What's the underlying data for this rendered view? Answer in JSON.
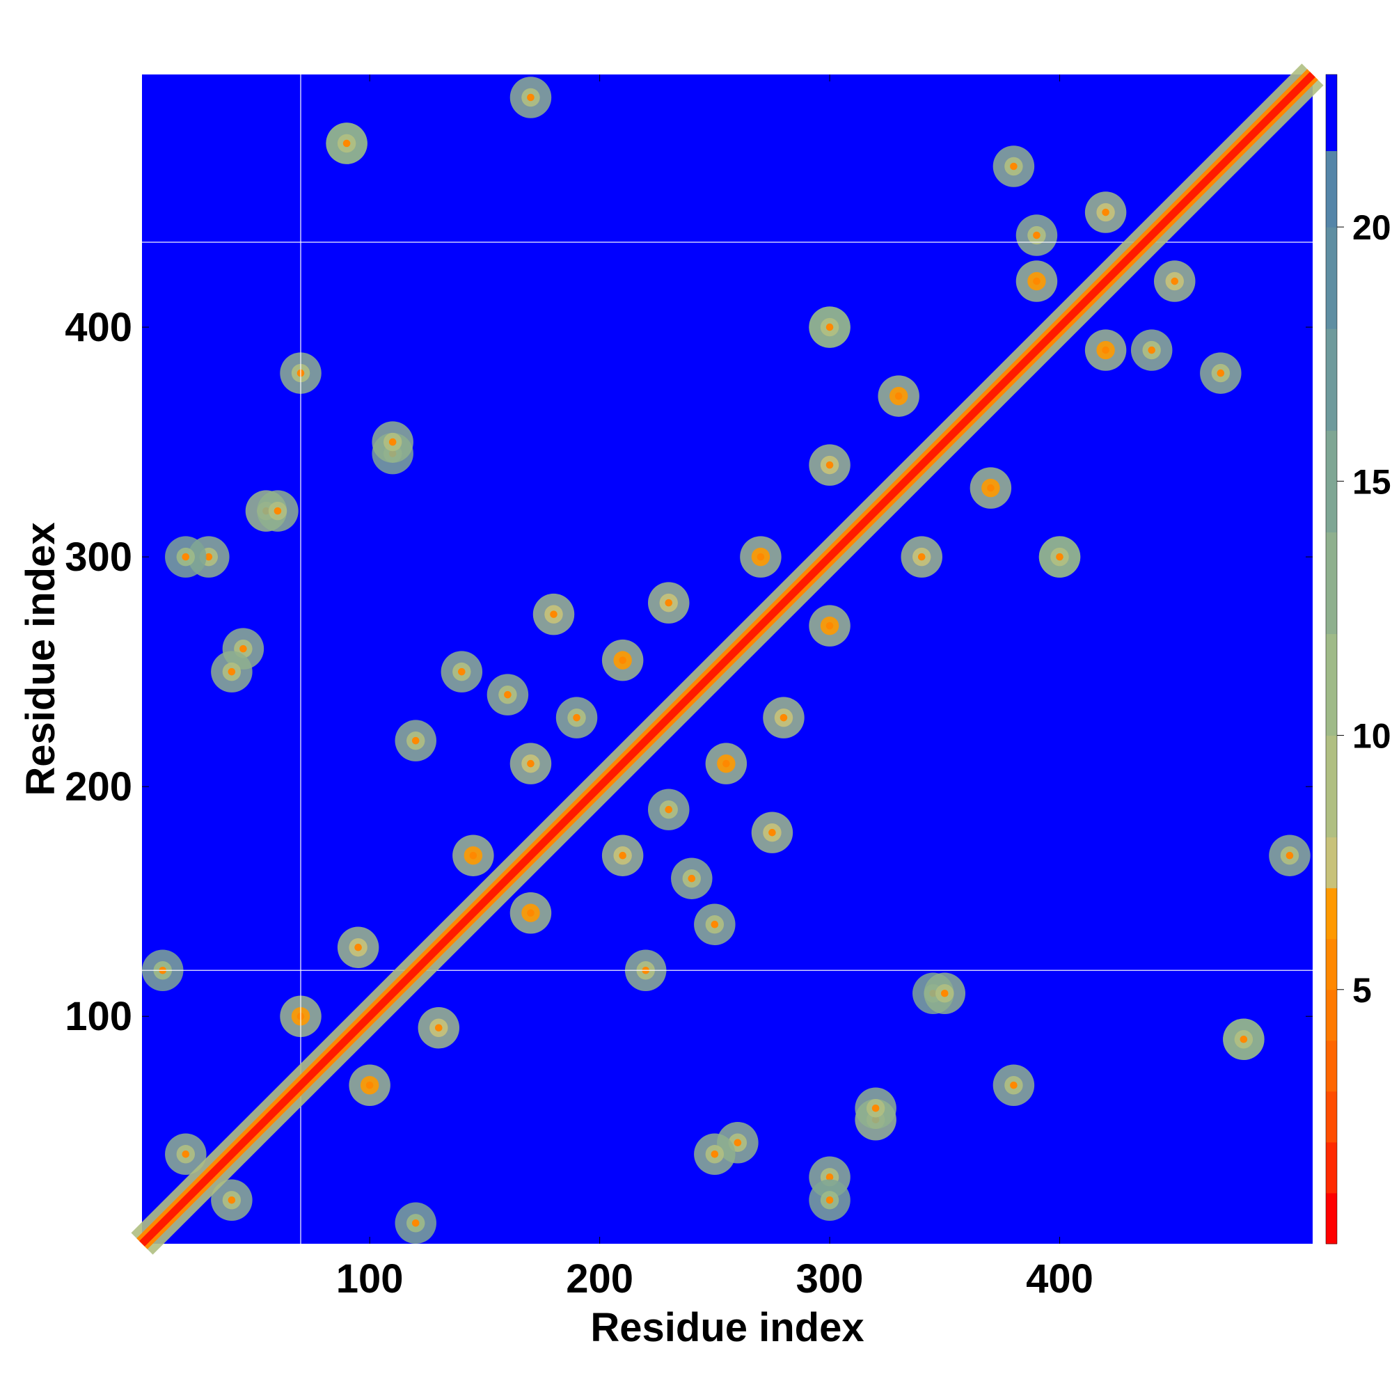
{
  "chart_data": {
    "type": "heatmap",
    "title": "",
    "xlabel": "Residue index",
    "ylabel": "Residue index",
    "xlim": [
      1,
      510
    ],
    "ylim": [
      1,
      510
    ],
    "x_ticks": [
      100,
      200,
      300,
      400
    ],
    "y_ticks": [
      100,
      200,
      300,
      400
    ],
    "colorbar": {
      "ticks": [
        5,
        10,
        15,
        20
      ],
      "range": [
        0,
        23
      ],
      "cutoff_color": "#0000ff",
      "levels": [
        {
          "from": 0,
          "to": 1,
          "color": "#ff0000"
        },
        {
          "from": 1,
          "to": 2,
          "color": "#ff2a00"
        },
        {
          "from": 2,
          "to": 3,
          "color": "#ff4d00"
        },
        {
          "from": 3,
          "to": 4,
          "color": "#ff6600"
        },
        {
          "from": 4,
          "to": 5,
          "color": "#ff7a00"
        },
        {
          "from": 5,
          "to": 6,
          "color": "#ff8800"
        },
        {
          "from": 6,
          "to": 7,
          "color": "#ff9900"
        },
        {
          "from": 7,
          "to": 8,
          "color": "#c8c27a"
        },
        {
          "from": 8,
          "to": 10,
          "color": "#b0bf82"
        },
        {
          "from": 10,
          "to": 12,
          "color": "#9fba88"
        },
        {
          "from": 12,
          "to": 14,
          "color": "#8fb08e"
        },
        {
          "from": 14,
          "to": 16,
          "color": "#7fa694"
        },
        {
          "from": 16,
          "to": 18,
          "color": "#6f9a9c"
        },
        {
          "from": 18,
          "to": 20,
          "color": "#5f8ea2"
        },
        {
          "from": 20,
          "to": 21.5,
          "color": "#5585a8"
        },
        {
          "from": 21.5,
          "to": 23,
          "color": "#0000ff"
        }
      ]
    },
    "background_color": "#0000ff",
    "diagonal_color": "#ff1a00",
    "gridlines": {
      "x": [
        70
      ],
      "y": [
        120,
        437
      ]
    },
    "contact_clusters": [
      {
        "i": 40,
        "j": 20,
        "value": 12
      },
      {
        "i": 100,
        "j": 70,
        "value": 10
      },
      {
        "i": 130,
        "j": 95,
        "value": 11
      },
      {
        "i": 120,
        "j": 10,
        "value": 14
      },
      {
        "i": 170,
        "j": 145,
        "value": 10
      },
      {
        "i": 210,
        "j": 170,
        "value": 11
      },
      {
        "i": 230,
        "j": 190,
        "value": 13
      },
      {
        "i": 255,
        "j": 210,
        "value": 10
      },
      {
        "i": 240,
        "j": 160,
        "value": 12
      },
      {
        "i": 280,
        "j": 230,
        "value": 11
      },
      {
        "i": 300,
        "j": 270,
        "value": 10
      },
      {
        "i": 300,
        "j": 30,
        "value": 13
      },
      {
        "i": 260,
        "j": 45,
        "value": 12
      },
      {
        "i": 320,
        "j": 55,
        "value": 11
      },
      {
        "i": 380,
        "j": 70,
        "value": 13
      },
      {
        "i": 480,
        "j": 90,
        "value": 12
      },
      {
        "i": 345,
        "j": 110,
        "value": 14
      },
      {
        "i": 220,
        "j": 120,
        "value": 12
      },
      {
        "i": 340,
        "j": 300,
        "value": 11
      },
      {
        "i": 370,
        "j": 330,
        "value": 10
      },
      {
        "i": 400,
        "j": 300,
        "value": 12
      },
      {
        "i": 420,
        "j": 390,
        "value": 10
      },
      {
        "i": 450,
        "j": 420,
        "value": 11
      },
      {
        "i": 390,
        "j": 440,
        "value": 12
      },
      {
        "i": 300,
        "j": 400,
        "value": 13
      },
      {
        "i": 60,
        "j": 320,
        "value": 12
      },
      {
        "i": 40,
        "j": 250,
        "value": 13
      },
      {
        "i": 20,
        "j": 300,
        "value": 14
      },
      {
        "i": 110,
        "j": 350,
        "value": 13
      },
      {
        "i": 90,
        "j": 480,
        "value": 12
      },
      {
        "i": 170,
        "j": 500,
        "value": 13
      },
      {
        "i": 140,
        "j": 250,
        "value": 12
      },
      {
        "i": 180,
        "j": 275,
        "value": 11
      },
      {
        "i": 470,
        "j": 380,
        "value": 12
      }
    ]
  }
}
